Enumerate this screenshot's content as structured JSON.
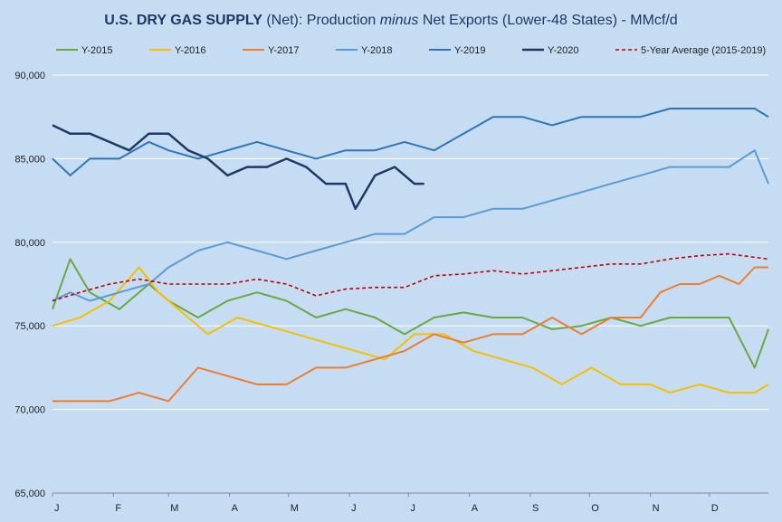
{
  "chart_data": {
    "type": "line",
    "title_parts": [
      {
        "text": "U.S. DRY GAS SUPPLY",
        "style": "bold"
      },
      {
        "text": " (Net): Production ",
        "style": "normal"
      },
      {
        "text": "minus",
        "style": "italic"
      },
      {
        "text": " Net Exports (Lower-48 States) - MMcf/d",
        "style": "normal"
      }
    ],
    "xlabel": "",
    "ylabel": "",
    "ylim": [
      65000,
      90000
    ],
    "y_ticks": [
      65000,
      70000,
      75000,
      80000,
      85000,
      90000
    ],
    "y_tick_labels": [
      "65,000",
      "70,000",
      "75,000",
      "80,000",
      "85,000",
      "90,000"
    ],
    "x_tick_labels": [
      "J",
      "F",
      "M",
      "A",
      "M",
      "J",
      "J",
      "A",
      "S",
      "O",
      "N",
      "D"
    ],
    "x_range": [
      1,
      365
    ],
    "grid": "horizontal",
    "legend_position": "top",
    "series": [
      {
        "name": "Y-2015",
        "color": "#6aa842",
        "style": "solid",
        "width": 2,
        "points": [
          [
            1,
            76000
          ],
          [
            10,
            79000
          ],
          [
            20,
            77000
          ],
          [
            35,
            76000
          ],
          [
            50,
            77500
          ],
          [
            60,
            76500
          ],
          [
            75,
            75500
          ],
          [
            90,
            76500
          ],
          [
            105,
            77000
          ],
          [
            120,
            76500
          ],
          [
            135,
            75500
          ],
          [
            150,
            76000
          ],
          [
            165,
            75500
          ],
          [
            180,
            74500
          ],
          [
            195,
            75500
          ],
          [
            210,
            75800
          ],
          [
            225,
            75500
          ],
          [
            240,
            75500
          ],
          [
            255,
            74800
          ],
          [
            270,
            75000
          ],
          [
            285,
            75500
          ],
          [
            300,
            75000
          ],
          [
            315,
            75500
          ],
          [
            330,
            75500
          ],
          [
            345,
            75500
          ],
          [
            358,
            72500
          ],
          [
            365,
            74800
          ]
        ]
      },
      {
        "name": "Y-2016",
        "color": "#f5c000",
        "style": "solid",
        "width": 2,
        "points": [
          [
            1,
            75000
          ],
          [
            15,
            75500
          ],
          [
            30,
            76500
          ],
          [
            45,
            78500
          ],
          [
            55,
            77000
          ],
          [
            65,
            76000
          ],
          [
            80,
            74500
          ],
          [
            95,
            75500
          ],
          [
            110,
            75000
          ],
          [
            125,
            74500
          ],
          [
            140,
            74000
          ],
          [
            155,
            73500
          ],
          [
            170,
            73000
          ],
          [
            185,
            74500
          ],
          [
            200,
            74500
          ],
          [
            215,
            73500
          ],
          [
            230,
            73000
          ],
          [
            245,
            72500
          ],
          [
            260,
            71500
          ],
          [
            275,
            72500
          ],
          [
            290,
            71500
          ],
          [
            305,
            71500
          ],
          [
            315,
            71000
          ],
          [
            330,
            71500
          ],
          [
            345,
            71000
          ],
          [
            358,
            71000
          ],
          [
            365,
            71500
          ]
        ]
      },
      {
        "name": "Y-2017",
        "color": "#ed7d31",
        "style": "solid",
        "width": 2,
        "points": [
          [
            1,
            70500
          ],
          [
            15,
            70500
          ],
          [
            30,
            70500
          ],
          [
            45,
            71000
          ],
          [
            60,
            70500
          ],
          [
            75,
            72500
          ],
          [
            90,
            72000
          ],
          [
            105,
            71500
          ],
          [
            120,
            71500
          ],
          [
            135,
            72500
          ],
          [
            150,
            72500
          ],
          [
            165,
            73000
          ],
          [
            180,
            73500
          ],
          [
            195,
            74500
          ],
          [
            210,
            74000
          ],
          [
            225,
            74500
          ],
          [
            240,
            74500
          ],
          [
            255,
            75500
          ],
          [
            270,
            74500
          ],
          [
            285,
            75500
          ],
          [
            300,
            75500
          ],
          [
            310,
            77000
          ],
          [
            320,
            77500
          ],
          [
            330,
            77500
          ],
          [
            340,
            78000
          ],
          [
            350,
            77500
          ],
          [
            358,
            78500
          ],
          [
            365,
            78500
          ]
        ]
      },
      {
        "name": "Y-2018",
        "color": "#5b9bd5",
        "style": "solid",
        "width": 2,
        "points": [
          [
            1,
            76500
          ],
          [
            10,
            77000
          ],
          [
            20,
            76500
          ],
          [
            35,
            77000
          ],
          [
            50,
            77500
          ],
          [
            60,
            78500
          ],
          [
            75,
            79500
          ],
          [
            90,
            80000
          ],
          [
            105,
            79500
          ],
          [
            120,
            79000
          ],
          [
            135,
            79500
          ],
          [
            150,
            80000
          ],
          [
            165,
            80500
          ],
          [
            180,
            80500
          ],
          [
            195,
            81500
          ],
          [
            210,
            81500
          ],
          [
            225,
            82000
          ],
          [
            240,
            82000
          ],
          [
            255,
            82500
          ],
          [
            270,
            83000
          ],
          [
            285,
            83500
          ],
          [
            300,
            84000
          ],
          [
            315,
            84500
          ],
          [
            330,
            84500
          ],
          [
            345,
            84500
          ],
          [
            358,
            85500
          ],
          [
            365,
            83500
          ]
        ]
      },
      {
        "name": "Y-2019",
        "color": "#2e75b6",
        "style": "solid",
        "width": 2,
        "points": [
          [
            1,
            85000
          ],
          [
            10,
            84000
          ],
          [
            20,
            85000
          ],
          [
            35,
            85000
          ],
          [
            50,
            86000
          ],
          [
            60,
            85500
          ],
          [
            75,
            85000
          ],
          [
            90,
            85500
          ],
          [
            105,
            86000
          ],
          [
            120,
            85500
          ],
          [
            135,
            85000
          ],
          [
            150,
            85500
          ],
          [
            165,
            85500
          ],
          [
            180,
            86000
          ],
          [
            195,
            85500
          ],
          [
            210,
            86500
          ],
          [
            225,
            87500
          ],
          [
            240,
            87500
          ],
          [
            255,
            87000
          ],
          [
            270,
            87500
          ],
          [
            285,
            87500
          ],
          [
            300,
            87500
          ],
          [
            315,
            88000
          ],
          [
            330,
            88000
          ],
          [
            345,
            88000
          ],
          [
            358,
            88000
          ],
          [
            365,
            87500
          ]
        ]
      },
      {
        "name": "Y-2020",
        "color": "#1f3864",
        "style": "solid",
        "width": 2.5,
        "points": [
          [
            1,
            87000
          ],
          [
            10,
            86500
          ],
          [
            20,
            86500
          ],
          [
            30,
            86000
          ],
          [
            40,
            85500
          ],
          [
            50,
            86500
          ],
          [
            60,
            86500
          ],
          [
            70,
            85500
          ],
          [
            80,
            85000
          ],
          [
            90,
            84000
          ],
          [
            100,
            84500
          ],
          [
            110,
            84500
          ],
          [
            120,
            85000
          ],
          [
            130,
            84500
          ],
          [
            140,
            83500
          ],
          [
            150,
            83500
          ],
          [
            155,
            82000
          ],
          [
            165,
            84000
          ],
          [
            175,
            84500
          ],
          [
            185,
            83500
          ],
          [
            190,
            83500
          ]
        ]
      },
      {
        "name": "5-Year Average (2015-2019)",
        "color": "#c00000",
        "style": "dashed",
        "width": 1.6,
        "points": [
          [
            1,
            76500
          ],
          [
            15,
            77000
          ],
          [
            30,
            77500
          ],
          [
            45,
            77800
          ],
          [
            60,
            77500
          ],
          [
            75,
            77500
          ],
          [
            90,
            77500
          ],
          [
            105,
            77800
          ],
          [
            120,
            77500
          ],
          [
            135,
            76800
          ],
          [
            150,
            77200
          ],
          [
            165,
            77300
          ],
          [
            180,
            77300
          ],
          [
            195,
            78000
          ],
          [
            210,
            78100
          ],
          [
            225,
            78300
          ],
          [
            240,
            78100
          ],
          [
            255,
            78300
          ],
          [
            270,
            78500
          ],
          [
            285,
            78700
          ],
          [
            300,
            78700
          ],
          [
            315,
            79000
          ],
          [
            330,
            79200
          ],
          [
            345,
            79300
          ],
          [
            358,
            79100
          ],
          [
            365,
            79000
          ]
        ]
      }
    ]
  }
}
